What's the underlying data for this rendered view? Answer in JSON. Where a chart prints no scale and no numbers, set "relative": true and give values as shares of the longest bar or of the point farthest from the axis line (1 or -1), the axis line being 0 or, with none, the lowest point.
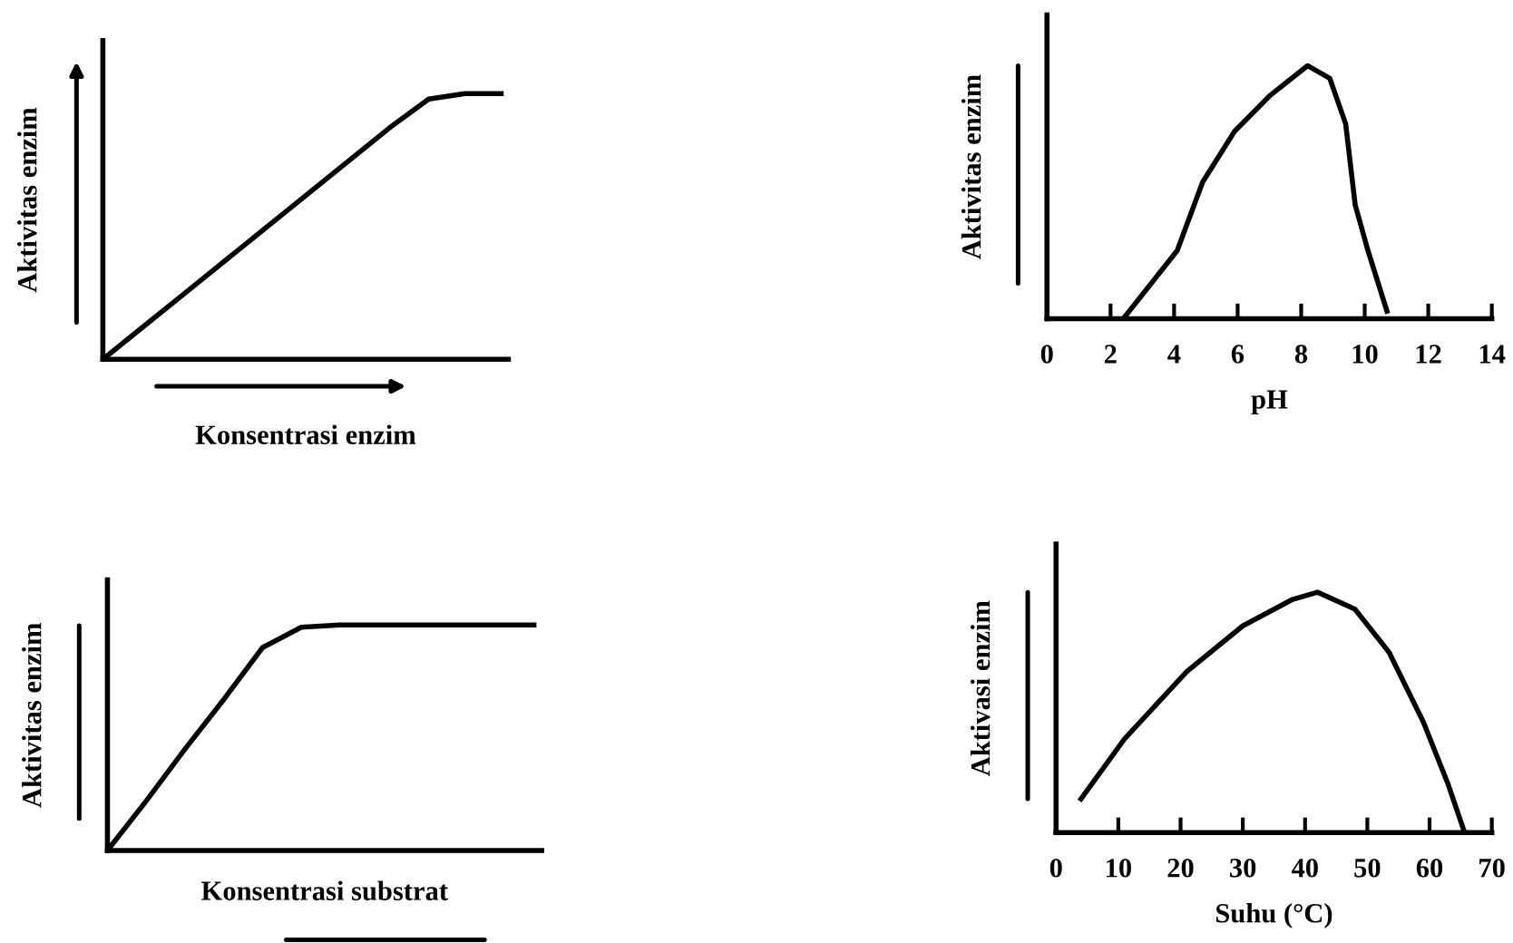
{
  "chart_data": [
    {
      "type": "line",
      "relative": true,
      "ylabel": "Aktivitas enzim",
      "xlabel": "Konsentrasi enzim",
      "tick_labels": false,
      "grid": false,
      "categories": [
        null,
        null,
        null,
        null,
        null,
        null,
        null,
        null,
        null,
        null,
        null,
        null
      ],
      "series": [
        {
          "color": "#000000",
          "values": [
            0,
            0.11,
            0.22,
            0.33,
            0.44,
            0.55,
            0.66,
            0.77,
            0.88,
            0.98,
            1,
            1
          ]
        }
      ]
    },
    {
      "type": "line",
      "relative": true,
      "ylabel": "Aktivitas enzim",
      "xlabel": "pH",
      "tick_labels": "x",
      "grid": false,
      "xlim": [
        0,
        14
      ],
      "xticks": [
        0,
        2,
        4,
        6,
        8,
        10,
        12,
        14
      ],
      "series": [
        {
          "color": "#000000",
          "x": [
            2.4,
            4.1,
            4.9,
            5.9,
            7.0,
            8.2,
            8.9,
            9.4,
            9.7,
            10.1,
            10.7
          ],
          "values": [
            0,
            0.27,
            0.54,
            0.74,
            0.88,
            1,
            0.95,
            0.77,
            0.45,
            0.27,
            0.03
          ]
        }
      ]
    },
    {
      "type": "line",
      "relative": true,
      "ylabel": "Aktivitas enzim",
      "xlabel": "Konsentrasi substrat",
      "tick_labels": false,
      "grid": false,
      "categories": [
        null,
        null,
        null,
        null,
        null,
        null,
        null,
        null,
        null,
        null,
        null,
        null
      ],
      "series": [
        {
          "color": "#000000",
          "values": [
            0,
            0.22,
            0.45,
            0.67,
            0.9,
            0.99,
            1,
            1,
            1,
            1,
            1,
            1
          ]
        }
      ]
    },
    {
      "type": "line",
      "relative": true,
      "ylabel": "Aktivasi enzim",
      "xlabel": "Suhu (°C)",
      "tick_labels": "x",
      "grid": false,
      "xlim": [
        0,
        70
      ],
      "xticks": [
        0,
        10,
        20,
        30,
        40,
        50,
        60,
        70
      ],
      "series": [
        {
          "color": "#000000",
          "x": [
            4,
            11,
            21,
            30,
            38,
            42,
            48,
            53.5,
            59,
            63,
            65.5
          ],
          "values": [
            0.14,
            0.39,
            0.67,
            0.86,
            0.97,
            1,
            0.93,
            0.75,
            0.46,
            0.2,
            0.01
          ]
        }
      ]
    }
  ]
}
